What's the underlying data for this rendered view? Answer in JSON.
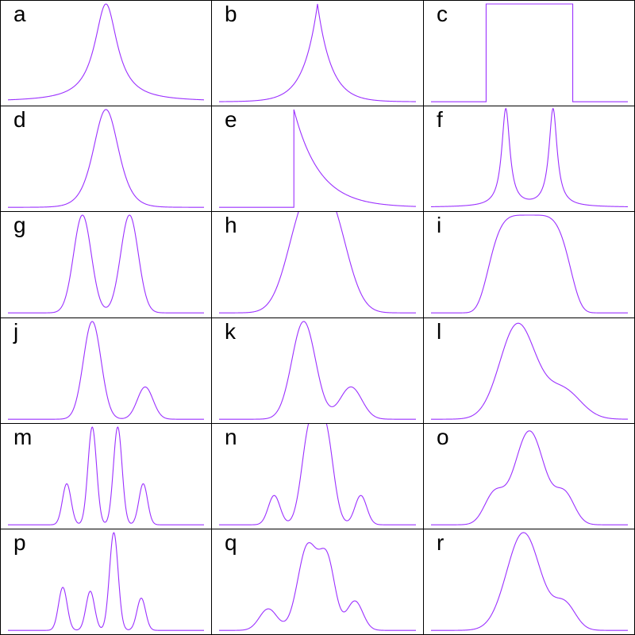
{
  "style": {
    "line_color": "#9b30ff"
  },
  "chart_data": [
    {
      "label": "a",
      "type": "line",
      "shape": "lorentzian",
      "peaks": [
        {
          "x": 0.5,
          "w": 0.07,
          "h": 1.0
        }
      ]
    },
    {
      "label": "b",
      "type": "line",
      "shape": "laplace",
      "peaks": [
        {
          "x": 0.5,
          "w": 0.07,
          "h": 1.0
        }
      ]
    },
    {
      "label": "c",
      "type": "line",
      "shape": "box",
      "x_start": 0.28,
      "x_end": 0.72,
      "h": 1.0
    },
    {
      "label": "d",
      "type": "line",
      "shape": "sech2",
      "peaks": [
        {
          "x": 0.5,
          "w": 0.085,
          "h": 1.0
        }
      ]
    },
    {
      "label": "e",
      "type": "line",
      "shape": "exp_decay",
      "x_start": 0.38,
      "tau": 0.13,
      "h": 1.0
    },
    {
      "label": "f",
      "type": "line",
      "shape": "lorentzian",
      "peaks": [
        {
          "x": 0.38,
          "w": 0.025,
          "h": 1.0
        },
        {
          "x": 0.62,
          "w": 0.025,
          "h": 1.0
        }
      ]
    },
    {
      "label": "g",
      "type": "line",
      "shape": "gaussian",
      "peaks": [
        {
          "x": 0.38,
          "w": 0.045,
          "h": 1.0
        },
        {
          "x": 0.62,
          "w": 0.045,
          "h": 1.0
        }
      ]
    },
    {
      "label": "h",
      "type": "line",
      "shape": "gaussian",
      "peaks": [
        {
          "x": 0.43,
          "w": 0.085,
          "h": 0.94
        },
        {
          "x": 0.57,
          "w": 0.085,
          "h": 0.94
        }
      ]
    },
    {
      "label": "i",
      "type": "line",
      "shape": "supergauss",
      "peaks": [
        {
          "x": 0.5,
          "w": 0.19,
          "h": 1.0,
          "p": 2.4
        }
      ]
    },
    {
      "label": "j",
      "type": "line",
      "shape": "gaussian",
      "peaks": [
        {
          "x": 0.43,
          "w": 0.045,
          "h": 1.0
        },
        {
          "x": 0.7,
          "w": 0.04,
          "h": 0.33
        }
      ]
    },
    {
      "label": "k",
      "type": "line",
      "shape": "gaussian",
      "peaks": [
        {
          "x": 0.43,
          "w": 0.06,
          "h": 1.0
        },
        {
          "x": 0.67,
          "w": 0.055,
          "h": 0.33
        }
      ]
    },
    {
      "label": "l",
      "type": "line",
      "shape": "gaussian",
      "peaks": [
        {
          "x": 0.44,
          "w": 0.09,
          "h": 0.97
        },
        {
          "x": 0.67,
          "w": 0.09,
          "h": 0.3
        }
      ]
    },
    {
      "label": "m",
      "type": "line",
      "shape": "gaussian",
      "peaks": [
        {
          "x": 0.3,
          "w": 0.022,
          "h": 0.42
        },
        {
          "x": 0.43,
          "w": 0.022,
          "h": 1.0
        },
        {
          "x": 0.56,
          "w": 0.022,
          "h": 1.0
        },
        {
          "x": 0.69,
          "w": 0.022,
          "h": 0.42
        }
      ]
    },
    {
      "label": "n",
      "type": "line",
      "shape": "gaussian",
      "peaks": [
        {
          "x": 0.28,
          "w": 0.03,
          "h": 0.3
        },
        {
          "x": 0.46,
          "w": 0.04,
          "h": 0.95
        },
        {
          "x": 0.54,
          "w": 0.04,
          "h": 0.95
        },
        {
          "x": 0.72,
          "w": 0.03,
          "h": 0.3
        }
      ]
    },
    {
      "label": "o",
      "type": "line",
      "shape": "gaussian",
      "peaks": [
        {
          "x": 0.32,
          "w": 0.05,
          "h": 0.3
        },
        {
          "x": 0.5,
          "w": 0.075,
          "h": 0.96
        },
        {
          "x": 0.68,
          "w": 0.05,
          "h": 0.3
        }
      ]
    },
    {
      "label": "p",
      "type": "line",
      "shape": "gaussian",
      "peaks": [
        {
          "x": 0.28,
          "w": 0.022,
          "h": 0.44
        },
        {
          "x": 0.42,
          "w": 0.022,
          "h": 0.4
        },
        {
          "x": 0.54,
          "w": 0.022,
          "h": 1.0
        },
        {
          "x": 0.68,
          "w": 0.022,
          "h": 0.33
        }
      ]
    },
    {
      "label": "q",
      "type": "line",
      "shape": "gaussian",
      "peaks": [
        {
          "x": 0.25,
          "w": 0.045,
          "h": 0.22
        },
        {
          "x": 0.45,
          "w": 0.05,
          "h": 0.86
        },
        {
          "x": 0.55,
          "w": 0.04,
          "h": 0.68
        },
        {
          "x": 0.69,
          "w": 0.04,
          "h": 0.3
        }
      ]
    },
    {
      "label": "r",
      "type": "line",
      "shape": "gaussian",
      "peaks": [
        {
          "x": 0.47,
          "w": 0.085,
          "h": 1.0
        },
        {
          "x": 0.68,
          "w": 0.055,
          "h": 0.26
        }
      ]
    }
  ]
}
